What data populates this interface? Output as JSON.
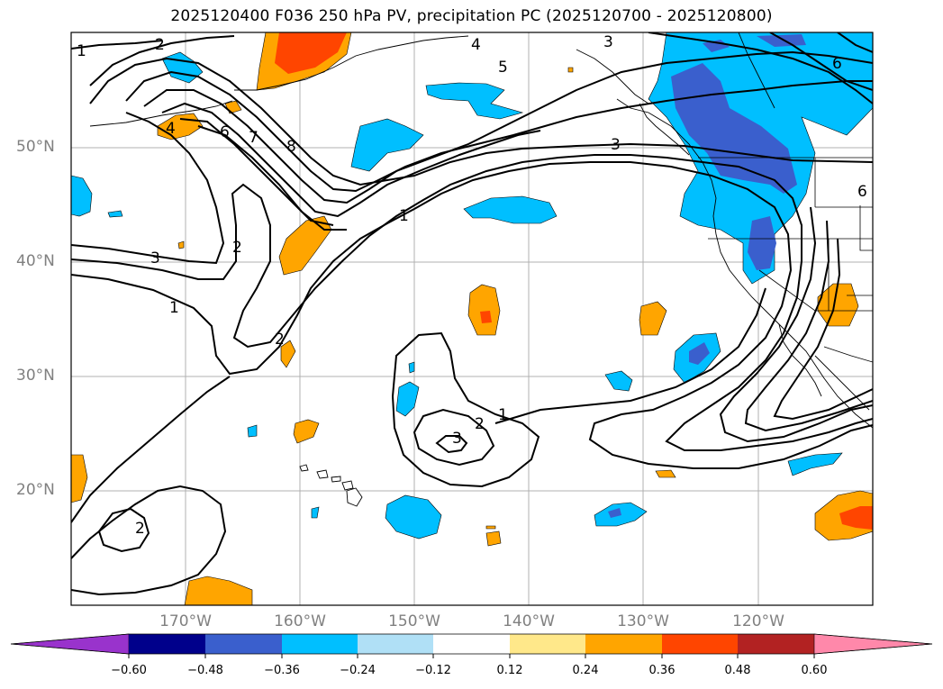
{
  "title": "2025120400 F036 250 hPa PV, precipitation PC (2025120700 - 2025120800)",
  "map": {
    "lat_labels": [
      "50°N",
      "40°N",
      "30°N",
      "20°N"
    ],
    "lon_labels": [
      "170°W",
      "160°W",
      "150°W",
      "140°W",
      "130°W",
      "120°W"
    ],
    "contour_labels": [
      "1",
      "2",
      "4",
      "6",
      "7",
      "8",
      "4",
      "5",
      "3",
      "1",
      "3",
      "2",
      "3",
      "1",
      "2",
      "1",
      "2",
      "3",
      "6",
      "6",
      "2"
    ]
  },
  "colorbar": {
    "labels": [
      "−0.60",
      "−0.48",
      "−0.36",
      "−0.24",
      "−0.12",
      "0.12",
      "0.24",
      "0.36",
      "0.48",
      "0.60"
    ],
    "colors": [
      "#9933cc",
      "#00008b",
      "#3a5fcd",
      "#00bfff",
      "#b0e0f6",
      "#ffffff",
      "#ffe88a",
      "#ffa500",
      "#ff4500",
      "#b22222",
      "#ff88aa"
    ]
  }
}
